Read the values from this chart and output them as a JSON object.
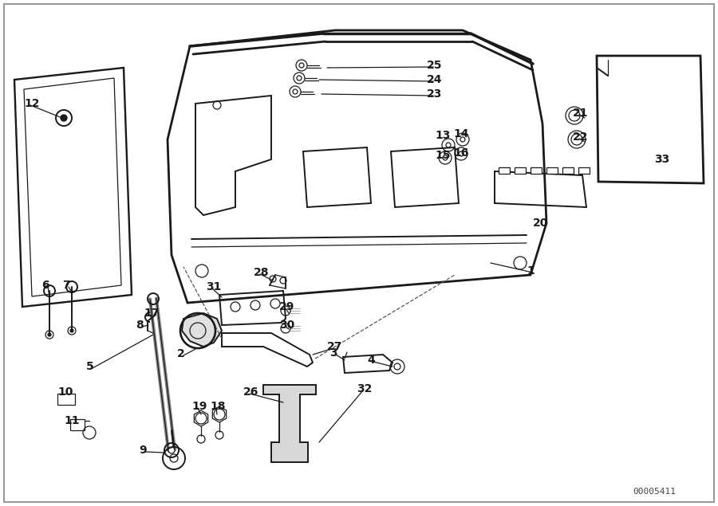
{
  "background_color": "#ffffff",
  "line_color": "#1a1a1a",
  "watermark": "00005411",
  "fig_w": 9.0,
  "fig_h": 6.35,
  "dpi": 100
}
